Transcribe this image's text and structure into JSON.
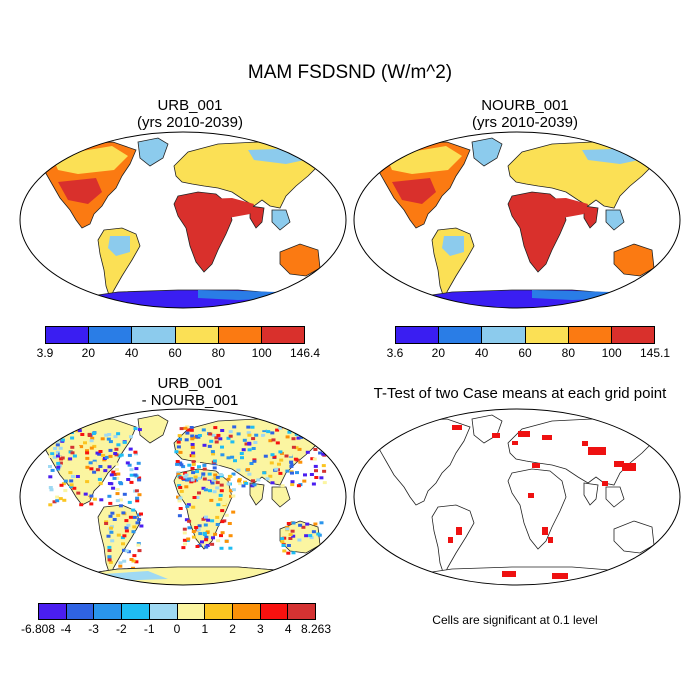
{
  "title": "MAM FSDSND (W/m^2)",
  "panels": [
    {
      "id": "urb",
      "title_line1": "URB_001",
      "title_line2": "(yrs 2010-2039)",
      "colors": [
        "#3a1ef2",
        "#2a7de6",
        "#8ccbed",
        "#fbe055",
        "#fb7a12",
        "#d9302c"
      ],
      "tick_labels": [
        "3.9",
        "20",
        "40",
        "60",
        "80",
        "100",
        "146.4"
      ]
    },
    {
      "id": "nourb",
      "title_line1": "NOURB_001",
      "title_line2": "(yrs 2010-2039)",
      "colors": [
        "#3a1ef2",
        "#2a7de6",
        "#8ccbed",
        "#fbe055",
        "#fb7a12",
        "#d9302c"
      ],
      "tick_labels": [
        "3.6",
        "20",
        "40",
        "60",
        "80",
        "100",
        "145.1"
      ]
    },
    {
      "id": "diff",
      "title_line1": "URB_001",
      "title_line2": "- NOURB_001",
      "colors": [
        "#4a1ef0",
        "#2f63e3",
        "#2a95ec",
        "#1fbdf3",
        "#9fd9f3",
        "#fbf5a1",
        "#fbc520",
        "#fb9108",
        "#f8110f",
        "#d43232"
      ],
      "tick_labels": [
        "-6.808",
        "-4",
        "-3",
        "-2",
        "-1",
        "0",
        "1",
        "2",
        "3",
        "4",
        "8.263"
      ]
    },
    {
      "id": "ttest",
      "title_line1": "T-Test of two Case means at each grid point",
      "title_line2": "",
      "significance_color": "#ee1111",
      "note": "Cells are significant at 0.1 level"
    }
  ]
}
